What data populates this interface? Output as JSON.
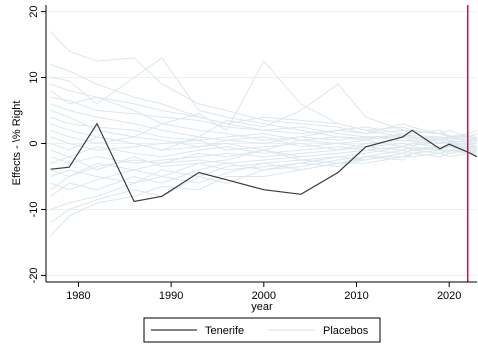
{
  "chart_data": {
    "type": "line",
    "xlabel": "year",
    "ylabel": "Effects - \\% Right",
    "xlim": [
      1976.5,
      2023
    ],
    "ylim": [
      -21,
      21
    ],
    "x_ticks": [
      1980,
      1990,
      2000,
      2010,
      2020
    ],
    "y_ticks": [
      -20,
      -10,
      0,
      10,
      20
    ],
    "grid": true,
    "legend_position": "bottom",
    "vertical_line": {
      "x": 2022,
      "color": "#c0184a"
    },
    "series": [
      {
        "name": "Tenerife",
        "role": "treated",
        "color": "#3a3a3a",
        "x": [
          1977,
          1979,
          1982,
          1986,
          1989,
          1993,
          1996,
          2000,
          2004,
          2008,
          2011,
          2015,
          2016,
          2019,
          2020,
          2022,
          2023
        ],
        "values": [
          -3.9,
          -3.6,
          3.0,
          -8.8,
          -8.0,
          -4.4,
          -5.5,
          -7.0,
          -7.7,
          -4.4,
          -0.5,
          1.0,
          2.0,
          -0.8,
          -0.1,
          -1.3,
          -2.0
        ]
      },
      {
        "name": "Placebos",
        "role": "placebo",
        "color": "#dbe7ec",
        "x": [
          1977,
          1979,
          1982,
          1986,
          1989,
          1993,
          1996,
          2000,
          2004,
          2008,
          2011,
          2015,
          2016,
          2019,
          2020,
          2022,
          2023
        ],
        "lines": [
          [
            17.0,
            14.0,
            12.5,
            13.0,
            9.0,
            6.0,
            5.0,
            3.5,
            3.0,
            2.5,
            1.5,
            2.0,
            1.8,
            1.5,
            1.2,
            0.8,
            1.5
          ],
          [
            12.0,
            11.0,
            9.0,
            7.0,
            6.0,
            4.0,
            3.0,
            2.0,
            2.5,
            1.5,
            1.0,
            1.2,
            0.8,
            1.0,
            0.5,
            0.2,
            0.5
          ],
          [
            10.0,
            9.5,
            6.0,
            10.0,
            13.0,
            5.0,
            4.0,
            3.0,
            2.0,
            1.0,
            0.5,
            1.5,
            1.0,
            0.5,
            1.0,
            1.2,
            0.8
          ],
          [
            8.0,
            6.0,
            7.0,
            5.0,
            3.0,
            4.5,
            2.0,
            12.5,
            6.0,
            3.0,
            2.0,
            1.0,
            2.0,
            1.5,
            1.0,
            1.5,
            2.0
          ],
          [
            6.0,
            5.0,
            4.0,
            3.0,
            2.0,
            1.0,
            3.5,
            2.5,
            5.0,
            9.0,
            4.0,
            2.0,
            1.5,
            2.0,
            1.0,
            0.5,
            1.0
          ],
          [
            5.0,
            4.0,
            2.0,
            1.0,
            3.0,
            2.0,
            1.5,
            0.5,
            1.0,
            2.0,
            1.5,
            3.0,
            2.5,
            1.5,
            2.0,
            1.0,
            0.5
          ],
          [
            4.0,
            3.0,
            2.5,
            2.0,
            1.0,
            0.5,
            1.0,
            1.5,
            0.5,
            1.0,
            0.8,
            1.0,
            0.5,
            0.5,
            0.8,
            0.5,
            0.3
          ],
          [
            3.0,
            2.0,
            1.0,
            0.0,
            -1.0,
            1.0,
            0.5,
            0.0,
            1.0,
            0.5,
            1.0,
            0.5,
            0.5,
            0.8,
            0.3,
            0.2,
            0.0
          ],
          [
            2.0,
            1.0,
            0.0,
            1.0,
            0.5,
            -0.5,
            0.5,
            1.0,
            -0.5,
            0.0,
            0.5,
            -0.5,
            0.0,
            0.5,
            0.0,
            0.5,
            1.0
          ],
          [
            1.0,
            0.0,
            -1.0,
            -0.5,
            0.0,
            0.5,
            -1.0,
            -0.5,
            0.0,
            -1.0,
            0.0,
            0.5,
            0.3,
            0.0,
            0.2,
            -0.2,
            0.0
          ],
          [
            0.0,
            -1.0,
            1.0,
            0.0,
            -1.0,
            -0.5,
            0.0,
            -1.0,
            0.5,
            0.0,
            -0.5,
            0.0,
            -0.3,
            0.2,
            0.0,
            -0.5,
            -0.3
          ],
          [
            -1.0,
            -2.0,
            -0.5,
            -1.5,
            -2.0,
            -1.0,
            -0.5,
            -1.5,
            -1.0,
            -0.5,
            -1.0,
            -0.5,
            0.0,
            -0.5,
            -0.3,
            0.0,
            -0.5
          ],
          [
            -2.0,
            -3.0,
            -2.0,
            -3.0,
            -2.5,
            -2.0,
            -1.5,
            -2.0,
            -1.5,
            -1.0,
            -0.5,
            -1.0,
            -0.5,
            -1.0,
            -0.5,
            -0.8,
            -1.0
          ],
          [
            -3.0,
            -2.0,
            -4.0,
            -2.0,
            -3.5,
            -3.0,
            -2.5,
            -1.0,
            -2.5,
            -2.0,
            -1.5,
            -0.5,
            -1.0,
            -0.5,
            -1.0,
            -0.5,
            -0.5
          ],
          [
            -4.0,
            -5.0,
            -3.0,
            -4.0,
            -3.0,
            -2.5,
            -3.0,
            -2.5,
            -2.0,
            -1.5,
            -1.0,
            -1.5,
            -1.0,
            -0.8,
            -0.5,
            -1.0,
            -1.2
          ],
          [
            -5.0,
            -4.0,
            -5.0,
            -6.0,
            -4.0,
            -5.0,
            -3.5,
            -3.0,
            -2.5,
            -3.0,
            -2.0,
            -1.0,
            -1.5,
            -1.0,
            -1.2,
            -0.8,
            -0.5
          ],
          [
            -6.0,
            -7.0,
            -5.5,
            -4.0,
            -5.0,
            -3.0,
            -4.0,
            -3.5,
            -3.0,
            -2.0,
            -2.5,
            -1.5,
            -1.0,
            -1.5,
            -1.0,
            -1.2,
            -1.5
          ],
          [
            -8.0,
            -6.0,
            -7.0,
            -5.0,
            -6.0,
            -4.0,
            -3.0,
            -4.0,
            -3.5,
            -2.5,
            -2.0,
            -2.0,
            -1.5,
            -1.0,
            -1.5,
            -1.0,
            -2.0
          ],
          [
            -10.0,
            -9.0,
            -8.0,
            -6.0,
            -5.0,
            -6.0,
            -4.5,
            -3.0,
            -4.0,
            -3.0,
            -2.5,
            -1.5,
            -2.0,
            -1.5,
            -1.0,
            -1.5,
            -1.0
          ],
          [
            -12.0,
            -10.0,
            -8.5,
            -7.0,
            -8.0,
            -5.0,
            -6.0,
            -4.0,
            -3.0,
            -3.5,
            -2.0,
            -2.5,
            -1.5,
            -2.0,
            -1.5,
            -1.0,
            -1.5
          ],
          [
            -14.0,
            -11.0,
            -9.0,
            -8.0,
            -6.5,
            -7.0,
            -5.0,
            -5.0,
            -4.0,
            -3.0,
            -3.0,
            -2.0,
            -2.0,
            -1.5,
            -2.0,
            -1.5,
            -1.0
          ],
          [
            9.0,
            8.0,
            7.0,
            6.0,
            5.0,
            4.0,
            3.0,
            4.0,
            3.5,
            3.0,
            2.0,
            2.5,
            2.0,
            1.5,
            1.0,
            1.0,
            1.5
          ],
          [
            7.0,
            6.5,
            5.0,
            4.5,
            4.0,
            3.5,
            2.5,
            2.0,
            1.5,
            2.0,
            2.5,
            1.5,
            1.2,
            1.0,
            0.8,
            0.5,
            0.8
          ],
          [
            -7.0,
            -5.0,
            -3.5,
            -2.5,
            -3.0,
            -1.5,
            -2.0,
            -1.0,
            -2.0,
            -1.5,
            -1.0,
            -0.5,
            -0.8,
            -0.5,
            -0.3,
            -0.5,
            -0.8
          ]
        ]
      }
    ]
  }
}
